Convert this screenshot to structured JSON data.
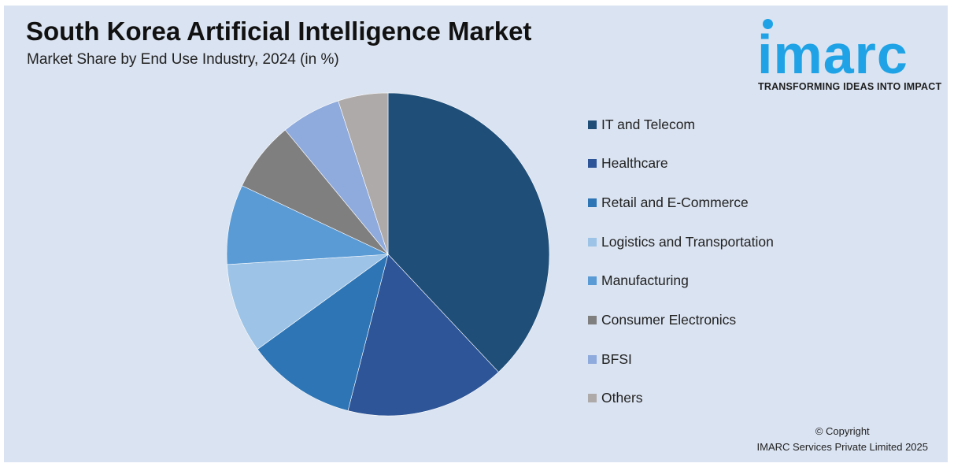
{
  "header": {
    "title": "South Korea Artificial Intelligence Market",
    "subtitle": "Market Share by End Use Industry, 2024 (in %)"
  },
  "logo": {
    "word": "imarc",
    "tagline": "TRANSFORMING IDEAS INTO IMPACT",
    "color": "#1fa3e6"
  },
  "footer": {
    "line1": "© Copyright",
    "line2": "IMARC Services Private Limited 2025"
  },
  "chart_data": {
    "type": "pie",
    "title": "South Korea Artificial Intelligence Market",
    "subtitle": "Market Share by End Use Industry, 2024 (in %)",
    "legend_position": "right",
    "start_angle": "12 o'clock, clockwise",
    "slices": [
      {
        "label": "IT and Telecom",
        "value": 38,
        "color": "#1f4e79"
      },
      {
        "label": "Healthcare",
        "value": 16,
        "color": "#2e5597"
      },
      {
        "label": "Retail and E-Commerce",
        "value": 11,
        "color": "#2e75b6"
      },
      {
        "label": "Logistics and Transportation",
        "value": 9,
        "color": "#9dc3e6"
      },
      {
        "label": "Manufacturing",
        "value": 8,
        "color": "#5b9bd5"
      },
      {
        "label": "Consumer Electronics",
        "value": 7,
        "color": "#7f7f7f"
      },
      {
        "label": "BFSI",
        "value": 6,
        "color": "#8faadc"
      },
      {
        "label": "Others",
        "value": 5,
        "color": "#aeaaaa"
      }
    ]
  }
}
